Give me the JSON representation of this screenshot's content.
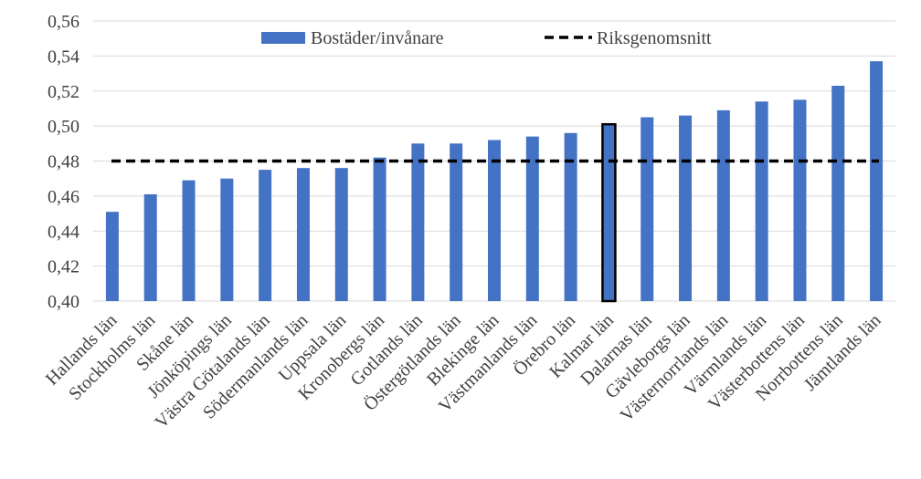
{
  "chart_data": {
    "type": "bar",
    "categories": [
      "Hallands län",
      "Stockholms län",
      "Skåne län",
      "Jönköpings län",
      "Västra Götalands län",
      "Södermanlands län",
      "Uppsala län",
      "Kronobergs län",
      "Gotlands län",
      "Östergötlands län",
      "Blekinge län",
      "Västmanlands län",
      "Örebro län",
      "Kalmar län",
      "Dalarnas län",
      "Gävleborgs län",
      "Västernorrlands län",
      "Värmlands län",
      "Västerbottens län",
      "Norrbottens län",
      "Jämtlands län"
    ],
    "series": [
      {
        "name": "Bostäder/invånare",
        "values": [
          0.451,
          0.461,
          0.469,
          0.47,
          0.475,
          0.476,
          0.476,
          0.482,
          0.49,
          0.49,
          0.492,
          0.494,
          0.496,
          0.501,
          0.505,
          0.506,
          0.509,
          0.514,
          0.515,
          0.523,
          0.537
        ],
        "color": "#4472c4"
      }
    ],
    "reference_line": {
      "name": "Riksgenomsnitt",
      "value": 0.48,
      "style": "dashed",
      "color": "#000000"
    },
    "highlighted_category": "Kalmar län",
    "highlight_color": "#000000",
    "yticks": [
      "0,40",
      "0,42",
      "0,44",
      "0,46",
      "0,48",
      "0,50",
      "0,52",
      "0,54",
      "0,56"
    ],
    "ylim": [
      0.4,
      0.56
    ],
    "title": "",
    "xlabel": "",
    "ylabel": "",
    "grid": true,
    "legend_position": "top"
  }
}
